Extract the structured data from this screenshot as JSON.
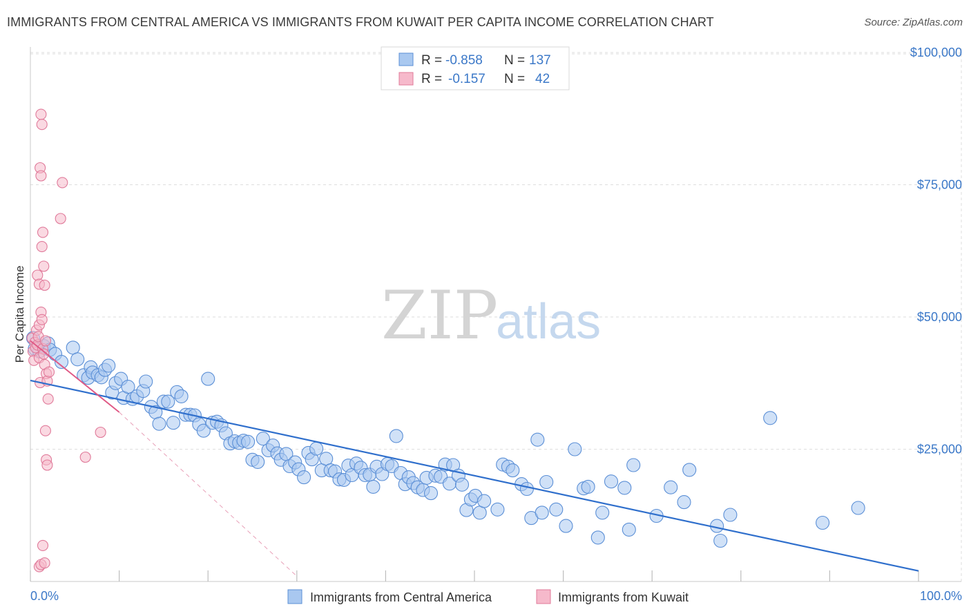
{
  "title": "IMMIGRANTS FROM CENTRAL AMERICA VS IMMIGRANTS FROM KUWAIT PER CAPITA INCOME CORRELATION CHART",
  "source": "Source: ZipAtlas.com",
  "watermark": {
    "zip": "ZIP",
    "atlas": "atlas"
  },
  "stats": [
    {
      "r_label": "R =",
      "r_value": "-0.858",
      "n_label": "N =",
      "n_value": "137",
      "color": "#a9c8f0",
      "stroke": "#5b8fd6"
    },
    {
      "r_label": "R =",
      "r_value": "-0.157",
      "n_label": "N =",
      "n_value": "42",
      "color": "#f6b9cb",
      "stroke": "#e07a9a"
    }
  ],
  "chart_data": {
    "type": "scatter",
    "title": "IMMIGRANTS FROM CENTRAL AMERICA VS IMMIGRANTS FROM KUWAIT PER CAPITA INCOME CORRELATION CHART",
    "xlabel": "",
    "ylabel": "Per Capita Income",
    "xlim": [
      0,
      100
    ],
    "ylim": [
      0,
      105000
    ],
    "x_tick_labels": [
      "0.0%",
      "100.0%"
    ],
    "y_ticks": [
      25000,
      50000,
      75000,
      100000
    ],
    "y_tick_labels": [
      "$25,000",
      "$50,000",
      "$75,000",
      "$100,000"
    ],
    "grid": true,
    "legend": [
      "Immigrants from Central America",
      "Immigrants from Kuwait"
    ],
    "series": [
      {
        "name": "Immigrants from Central America",
        "color": "#a9c8f0",
        "stroke": "#5b8fd6",
        "trend": {
          "x": [
            0,
            100
          ],
          "y": [
            38000,
            2000
          ],
          "color": "#2f6fcc"
        },
        "points": [
          [
            0.3,
            46000
          ],
          [
            0.5,
            44000
          ],
          [
            1.0,
            43500
          ],
          [
            1.5,
            44500
          ],
          [
            2.0,
            45000
          ],
          [
            2.2,
            43800
          ],
          [
            2.8,
            43000
          ],
          [
            3.5,
            41500
          ],
          [
            4.8,
            44200
          ],
          [
            5.3,
            42000
          ],
          [
            6.0,
            39000
          ],
          [
            6.5,
            38500
          ],
          [
            6.8,
            40500
          ],
          [
            7.0,
            39500
          ],
          [
            7.6,
            39000
          ],
          [
            8.0,
            38600
          ],
          [
            8.4,
            40000
          ],
          [
            8.8,
            40800
          ],
          [
            9.2,
            35700
          ],
          [
            9.6,
            37500
          ],
          [
            10.2,
            38300
          ],
          [
            10.5,
            34700
          ],
          [
            11.0,
            36800
          ],
          [
            11.5,
            34500
          ],
          [
            12.0,
            35000
          ],
          [
            12.7,
            36000
          ],
          [
            13.0,
            37800
          ],
          [
            13.6,
            33000
          ],
          [
            14.1,
            32000
          ],
          [
            14.5,
            29800
          ],
          [
            15.0,
            34000
          ],
          [
            15.5,
            34000
          ],
          [
            16.1,
            30000
          ],
          [
            16.5,
            35800
          ],
          [
            17.0,
            35000
          ],
          [
            17.5,
            31500
          ],
          [
            18.0,
            31500
          ],
          [
            18.5,
            31400
          ],
          [
            19.0,
            29700
          ],
          [
            19.5,
            28500
          ],
          [
            20.0,
            38300
          ],
          [
            20.5,
            30000
          ],
          [
            21.0,
            30200
          ],
          [
            21.5,
            29500
          ],
          [
            22.0,
            28000
          ],
          [
            22.5,
            26100
          ],
          [
            23.0,
            26500
          ],
          [
            23.5,
            26200
          ],
          [
            24.0,
            26600
          ],
          [
            24.5,
            26400
          ],
          [
            25.0,
            23000
          ],
          [
            25.6,
            22600
          ],
          [
            26.2,
            27000
          ],
          [
            26.8,
            24800
          ],
          [
            27.3,
            25700
          ],
          [
            27.8,
            24200
          ],
          [
            28.2,
            23000
          ],
          [
            28.8,
            24100
          ],
          [
            29.2,
            21800
          ],
          [
            29.8,
            22500
          ],
          [
            30.2,
            21200
          ],
          [
            30.8,
            19700
          ],
          [
            31.3,
            24300
          ],
          [
            31.7,
            23100
          ],
          [
            32.2,
            25100
          ],
          [
            32.8,
            21000
          ],
          [
            33.3,
            23200
          ],
          [
            33.8,
            21000
          ],
          [
            34.3,
            20800
          ],
          [
            34.8,
            19300
          ],
          [
            35.3,
            19200
          ],
          [
            35.8,
            21900
          ],
          [
            36.2,
            20100
          ],
          [
            36.7,
            22300
          ],
          [
            37.2,
            21500
          ],
          [
            37.7,
            20100
          ],
          [
            38.2,
            20200
          ],
          [
            38.6,
            17900
          ],
          [
            39.0,
            21700
          ],
          [
            39.6,
            20300
          ],
          [
            40.2,
            22200
          ],
          [
            40.7,
            21800
          ],
          [
            41.2,
            27500
          ],
          [
            41.7,
            20500
          ],
          [
            42.2,
            18400
          ],
          [
            42.6,
            19700
          ],
          [
            43.1,
            18600
          ],
          [
            43.6,
            17800
          ],
          [
            44.2,
            17300
          ],
          [
            44.6,
            19600
          ],
          [
            45.1,
            16700
          ],
          [
            45.6,
            20000
          ],
          [
            46.2,
            19800
          ],
          [
            46.7,
            22100
          ],
          [
            47.2,
            18500
          ],
          [
            47.6,
            22000
          ],
          [
            48.2,
            20000
          ],
          [
            48.6,
            18300
          ],
          [
            49.1,
            13500
          ],
          [
            49.6,
            15500
          ],
          [
            50.1,
            16200
          ],
          [
            50.6,
            13000
          ],
          [
            51.1,
            15200
          ],
          [
            52.6,
            13600
          ],
          [
            53.2,
            22100
          ],
          [
            53.8,
            21700
          ],
          [
            54.3,
            21000
          ],
          [
            55.3,
            18400
          ],
          [
            55.9,
            17500
          ],
          [
            56.4,
            12000
          ],
          [
            57.1,
            26800
          ],
          [
            57.6,
            13000
          ],
          [
            58.1,
            18800
          ],
          [
            59.2,
            13600
          ],
          [
            60.3,
            10500
          ],
          [
            61.3,
            25000
          ],
          [
            62.3,
            17600
          ],
          [
            62.8,
            17900
          ],
          [
            63.9,
            8300
          ],
          [
            64.4,
            13000
          ],
          [
            65.4,
            18900
          ],
          [
            66.9,
            17700
          ],
          [
            67.4,
            9800
          ],
          [
            67.9,
            22000
          ],
          [
            70.5,
            12400
          ],
          [
            72.1,
            17800
          ],
          [
            73.6,
            15000
          ],
          [
            74.2,
            21100
          ],
          [
            77.3,
            10500
          ],
          [
            77.7,
            7700
          ],
          [
            78.8,
            12600
          ],
          [
            83.3,
            30900
          ],
          [
            89.2,
            11100
          ],
          [
            93.2,
            13900
          ]
        ]
      },
      {
        "name": "Immigrants from Kuwait",
        "color": "#f6b9cb",
        "stroke": "#e07a9a",
        "trend": {
          "x": [
            0,
            10
          ],
          "y": [
            45500,
            32000
          ],
          "color": "#e05a86",
          "dashed_x": [
            10,
            30
          ],
          "dashed_y": [
            32000,
            1000
          ]
        },
        "points": [
          [
            0.2,
            46000
          ],
          [
            0.3,
            43500
          ],
          [
            0.4,
            41800
          ],
          [
            0.5,
            45200
          ],
          [
            0.6,
            44200
          ],
          [
            0.7,
            47500
          ],
          [
            0.8,
            44700
          ],
          [
            0.9,
            46300
          ],
          [
            1.0,
            48500
          ],
          [
            1.0,
            42300
          ],
          [
            1.1,
            37600
          ],
          [
            1.2,
            50900
          ],
          [
            1.3,
            49500
          ],
          [
            1.4,
            44000
          ],
          [
            1.5,
            43000
          ],
          [
            1.6,
            41000
          ],
          [
            1.7,
            45500
          ],
          [
            1.8,
            39300
          ],
          [
            1.9,
            37900
          ],
          [
            2.0,
            34500
          ],
          [
            0.8,
            57900
          ],
          [
            1.0,
            56200
          ],
          [
            1.3,
            63300
          ],
          [
            1.4,
            66000
          ],
          [
            1.5,
            59600
          ],
          [
            1.6,
            56000
          ],
          [
            1.7,
            28500
          ],
          [
            1.8,
            23000
          ],
          [
            1.9,
            22000
          ],
          [
            2.1,
            39600
          ],
          [
            1.1,
            78200
          ],
          [
            1.2,
            76700
          ],
          [
            1.2,
            88300
          ],
          [
            1.3,
            86400
          ],
          [
            3.6,
            75400
          ],
          [
            3.4,
            68600
          ],
          [
            7.9,
            28200
          ],
          [
            6.2,
            23500
          ],
          [
            1.0,
            2800
          ],
          [
            1.2,
            3200
          ],
          [
            1.4,
            6800
          ],
          [
            1.6,
            3500
          ]
        ]
      }
    ]
  },
  "legend": {
    "items": [
      {
        "label": "Immigrants from Central America",
        "color": "#a9c8f0",
        "stroke": "#5b8fd6"
      },
      {
        "label": "Immigrants from Kuwait",
        "color": "#f6b9cb",
        "stroke": "#e07a9a"
      }
    ]
  }
}
